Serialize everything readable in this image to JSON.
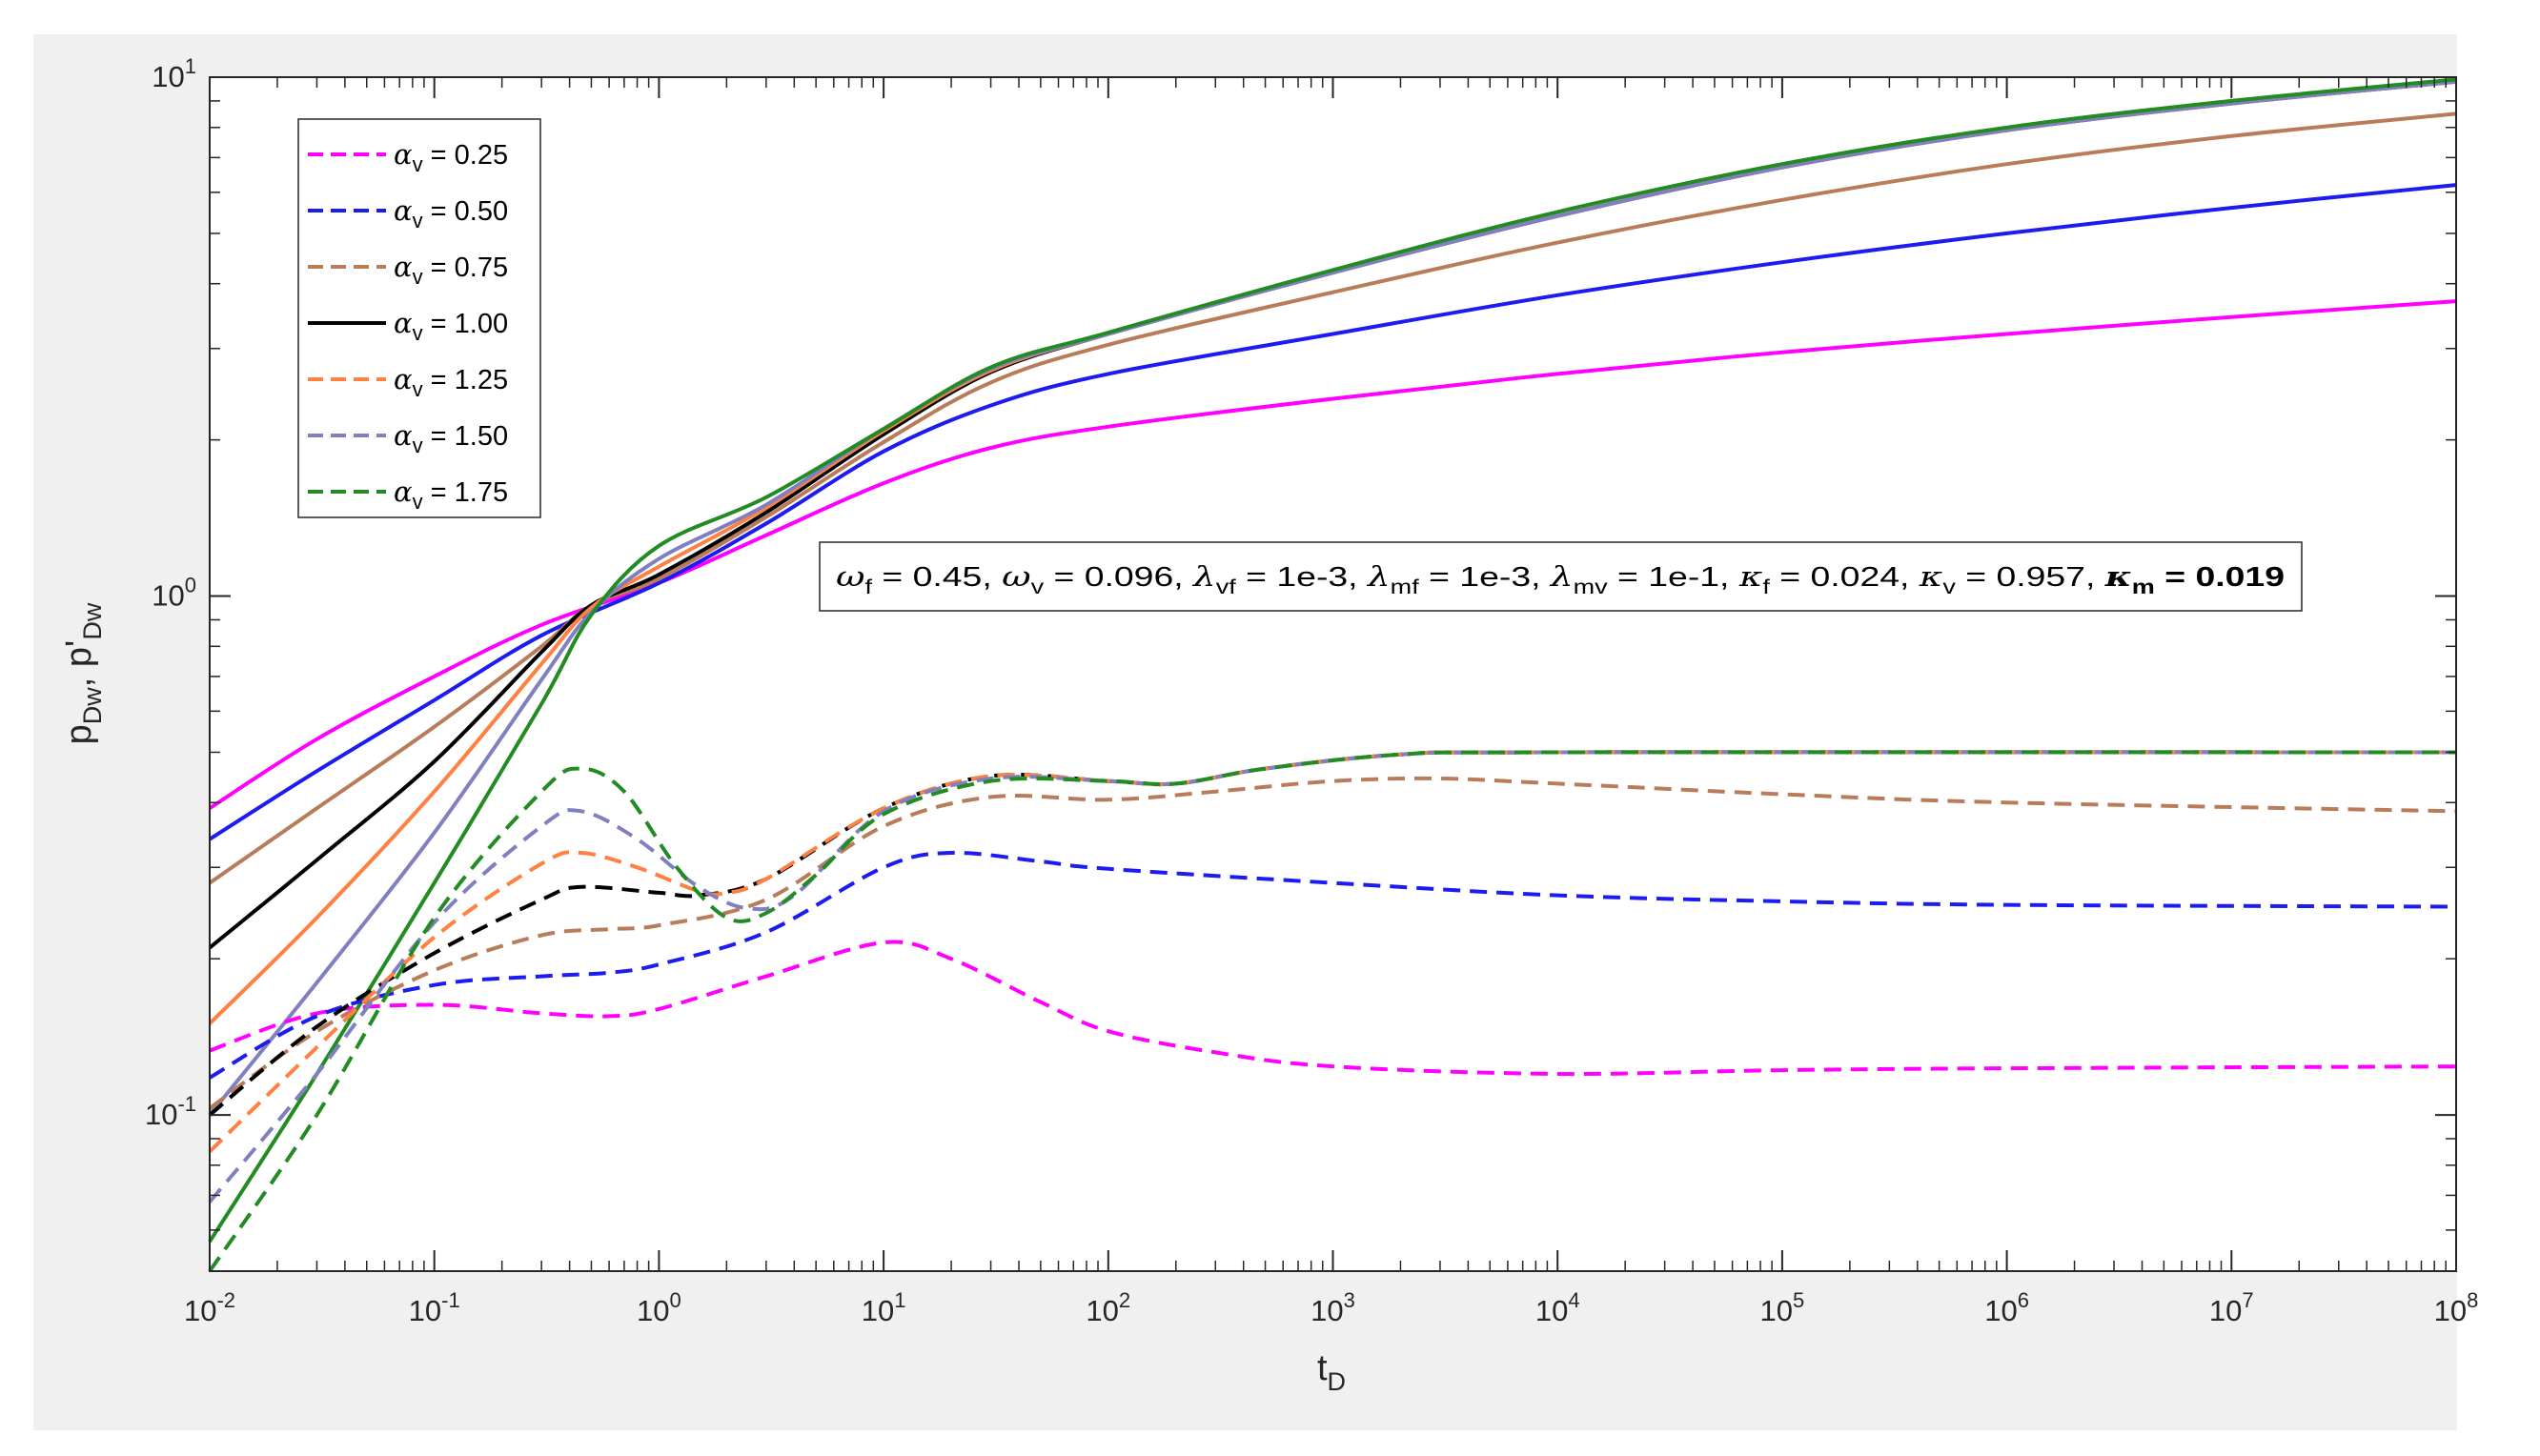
{
  "chart_data": {
    "type": "line",
    "xscale": "log",
    "yscale": "log",
    "xlim": [
      0.01,
      100000000
    ],
    "ylim": [
      0.05,
      10
    ],
    "xticks": [
      {
        "base": "10",
        "exp": "-2"
      },
      {
        "base": "10",
        "exp": "-1"
      },
      {
        "base": "10",
        "exp": "0"
      },
      {
        "base": "10",
        "exp": "1"
      },
      {
        "base": "10",
        "exp": "2"
      },
      {
        "base": "10",
        "exp": "3"
      },
      {
        "base": "10",
        "exp": "4"
      },
      {
        "base": "10",
        "exp": "5"
      },
      {
        "base": "10",
        "exp": "6"
      },
      {
        "base": "10",
        "exp": "7"
      },
      {
        "base": "10",
        "exp": "8"
      }
    ],
    "yticks": [
      {
        "base": "10",
        "exp": "-1"
      },
      {
        "base": "10",
        "exp": "0"
      },
      {
        "base": "10",
        "exp": "1"
      }
    ],
    "xlabel": {
      "main": "t",
      "sub": "D"
    },
    "ylabel": {
      "p1": "p",
      "s1": "Dw",
      "sep": ", p'",
      "s2": "Dw"
    },
    "legend_position": "top-left",
    "grid": false,
    "annotation": "ωf = 0.45, ωv = 0.096, λvf = 1e-3, λmf = 1e-3, λmv = 1e-1, κf = 0.024, κv = 0.957, κm = 0.019",
    "series": [
      {
        "name": "αv = 0.25",
        "symbol": "α",
        "sub": "v",
        "value": "0.25",
        "color": "#ff00ff",
        "pressure": [
          [
            0.01,
            0.39
          ],
          [
            0.03,
            0.53
          ],
          [
            0.1,
            0.7
          ],
          [
            0.3,
            0.88
          ],
          [
            1,
            1.06
          ],
          [
            3,
            1.31
          ],
          [
            10,
            1.65
          ],
          [
            30,
            1.93
          ],
          [
            100,
            2.12
          ],
          [
            1000,
            2.4
          ],
          [
            10000,
            2.68
          ],
          [
            100000,
            2.95
          ],
          [
            1000000,
            3.2
          ],
          [
            10000000,
            3.45
          ],
          [
            100000000,
            3.7
          ]
        ],
        "derivative": [
          [
            0.01,
            0.133
          ],
          [
            0.03,
            0.157
          ],
          [
            0.1,
            0.163
          ],
          [
            0.3,
            0.157
          ],
          [
            0.6,
            0.155
          ],
          [
            1,
            0.16
          ],
          [
            3,
            0.185
          ],
          [
            10,
            0.215
          ],
          [
            20,
            0.2
          ],
          [
            50,
            0.165
          ],
          [
            100,
            0.145
          ],
          [
            300,
            0.132
          ],
          [
            1000,
            0.124
          ],
          [
            10000,
            0.12
          ],
          [
            100000,
            0.122
          ],
          [
            1000000,
            0.123
          ],
          [
            100000000,
            0.124
          ]
        ]
      },
      {
        "name": "αv = 0.50",
        "symbol": "α",
        "sub": "v",
        "value": "0.50",
        "color": "#1c1cf0",
        "pressure": [
          [
            0.01,
            0.34
          ],
          [
            0.03,
            0.46
          ],
          [
            0.1,
            0.63
          ],
          [
            0.3,
            0.84
          ],
          [
            1,
            1.06
          ],
          [
            3,
            1.38
          ],
          [
            10,
            1.9
          ],
          [
            30,
            2.33
          ],
          [
            100,
            2.68
          ],
          [
            1000,
            3.2
          ],
          [
            10000,
            3.8
          ],
          [
            100000,
            4.4
          ],
          [
            1000000,
            5.0
          ],
          [
            10000000,
            5.6
          ],
          [
            100000000,
            6.2
          ]
        ],
        "derivative": [
          [
            0.01,
            0.118
          ],
          [
            0.03,
            0.155
          ],
          [
            0.1,
            0.178
          ],
          [
            0.3,
            0.185
          ],
          [
            0.6,
            0.188
          ],
          [
            1,
            0.195
          ],
          [
            3,
            0.225
          ],
          [
            10,
            0.3
          ],
          [
            20,
            0.32
          ],
          [
            50,
            0.308
          ],
          [
            100,
            0.298
          ],
          [
            1000,
            0.28
          ],
          [
            10000,
            0.265
          ],
          [
            100000,
            0.258
          ],
          [
            1000000,
            0.254
          ],
          [
            100000000,
            0.252
          ]
        ]
      },
      {
        "name": "αv = 0.75",
        "symbol": "α",
        "sub": "v",
        "value": "0.75",
        "color": "#b87c5a",
        "pressure": [
          [
            0.01,
            0.28
          ],
          [
            0.03,
            0.39
          ],
          [
            0.1,
            0.56
          ],
          [
            0.3,
            0.8
          ],
          [
            0.5,
            0.96
          ],
          [
            1,
            1.08
          ],
          [
            3,
            1.42
          ],
          [
            10,
            1.98
          ],
          [
            30,
            2.58
          ],
          [
            100,
            3.05
          ],
          [
            1000,
            3.85
          ],
          [
            10000,
            4.8
          ],
          [
            100000,
            5.8
          ],
          [
            1000000,
            6.8
          ],
          [
            10000000,
            7.7
          ],
          [
            100000000,
            8.5
          ]
        ],
        "derivative": [
          [
            0.01,
            0.103
          ],
          [
            0.03,
            0.145
          ],
          [
            0.1,
            0.19
          ],
          [
            0.3,
            0.222
          ],
          [
            0.6,
            0.228
          ],
          [
            1,
            0.232
          ],
          [
            3,
            0.26
          ],
          [
            10,
            0.36
          ],
          [
            30,
            0.41
          ],
          [
            100,
            0.405
          ],
          [
            300,
            0.42
          ],
          [
            1000,
            0.44
          ],
          [
            3000,
            0.445
          ],
          [
            10000,
            0.435
          ],
          [
            100000,
            0.415
          ],
          [
            1000000,
            0.4
          ],
          [
            100000000,
            0.385
          ]
        ]
      },
      {
        "name": "αv = 1.00",
        "symbol": "α",
        "sub": "v",
        "value": "1.00",
        "color": "#000000",
        "pressure": [
          [
            0.01,
            0.21
          ],
          [
            0.03,
            0.31
          ],
          [
            0.1,
            0.48
          ],
          [
            0.3,
            0.78
          ],
          [
            0.5,
            0.96
          ],
          [
            1,
            1.1
          ],
          [
            3,
            1.45
          ],
          [
            10,
            2.05
          ],
          [
            30,
            2.7
          ],
          [
            100,
            3.2
          ],
          [
            1000,
            4.2
          ],
          [
            10000,
            5.4
          ],
          [
            100000,
            6.7
          ],
          [
            1000000,
            7.9
          ],
          [
            10000000,
            8.9
          ],
          [
            100000000,
            9.8
          ]
        ],
        "derivative": [
          [
            0.01,
            0.1
          ],
          [
            0.03,
            0.148
          ],
          [
            0.1,
            0.205
          ],
          [
            0.3,
            0.26
          ],
          [
            0.45,
            0.275
          ],
          [
            1,
            0.268
          ],
          [
            1.5,
            0.265
          ],
          [
            3,
            0.285
          ],
          [
            10,
            0.39
          ],
          [
            30,
            0.45
          ],
          [
            100,
            0.44
          ],
          [
            200,
            0.435
          ],
          [
            500,
            0.465
          ],
          [
            2000,
            0.495
          ],
          [
            10000,
            0.5
          ],
          [
            100000000,
            0.5
          ]
        ]
      },
      {
        "name": "αv = 1.25",
        "symbol": "α",
        "sub": "v",
        "value": "1.25",
        "color": "#ff8040",
        "pressure": [
          [
            0.01,
            0.15
          ],
          [
            0.03,
            0.24
          ],
          [
            0.1,
            0.42
          ],
          [
            0.3,
            0.74
          ],
          [
            0.5,
            0.95
          ],
          [
            1,
            1.14
          ],
          [
            3,
            1.48
          ],
          [
            10,
            2.08
          ],
          [
            30,
            2.72
          ],
          [
            100,
            3.2
          ],
          [
            1000,
            4.2
          ],
          [
            10000,
            5.4
          ],
          [
            100000,
            6.7
          ],
          [
            1000000,
            7.9
          ],
          [
            10000000,
            8.9
          ],
          [
            100000000,
            9.8
          ]
        ],
        "derivative": [
          [
            0.01,
            0.085
          ],
          [
            0.03,
            0.135
          ],
          [
            0.1,
            0.22
          ],
          [
            0.3,
            0.305
          ],
          [
            0.45,
            0.32
          ],
          [
            0.8,
            0.3
          ],
          [
            1.5,
            0.27
          ],
          [
            2,
            0.268
          ],
          [
            3,
            0.285
          ],
          [
            10,
            0.39
          ],
          [
            30,
            0.45
          ],
          [
            100,
            0.44
          ],
          [
            200,
            0.435
          ],
          [
            500,
            0.465
          ],
          [
            2000,
            0.495
          ],
          [
            10000,
            0.5
          ],
          [
            100000000,
            0.5
          ]
        ]
      },
      {
        "name": "αv = 1.50",
        "symbol": "α",
        "sub": "v",
        "value": "1.50",
        "color": "#8080c0",
        "pressure": [
          [
            0.01,
            0.1
          ],
          [
            0.03,
            0.18
          ],
          [
            0.1,
            0.35
          ],
          [
            0.3,
            0.69
          ],
          [
            0.5,
            0.93
          ],
          [
            1,
            1.18
          ],
          [
            3,
            1.5
          ],
          [
            10,
            2.1
          ],
          [
            30,
            2.74
          ],
          [
            100,
            3.2
          ],
          [
            1000,
            4.2
          ],
          [
            10000,
            5.4
          ],
          [
            100000,
            6.7
          ],
          [
            1000000,
            7.9
          ],
          [
            10000000,
            8.9
          ],
          [
            100000000,
            9.8
          ]
        ],
        "derivative": [
          [
            0.01,
            0.068
          ],
          [
            0.03,
            0.12
          ],
          [
            0.1,
            0.235
          ],
          [
            0.3,
            0.36
          ],
          [
            0.45,
            0.385
          ],
          [
            0.8,
            0.34
          ],
          [
            1.5,
            0.275
          ],
          [
            2.5,
            0.25
          ],
          [
            4,
            0.265
          ],
          [
            10,
            0.385
          ],
          [
            30,
            0.445
          ],
          [
            100,
            0.44
          ],
          [
            200,
            0.435
          ],
          [
            500,
            0.465
          ],
          [
            2000,
            0.495
          ],
          [
            10000,
            0.5
          ],
          [
            100000000,
            0.5
          ]
        ]
      },
      {
        "name": "αv = 1.75",
        "symbol": "α",
        "sub": "v",
        "value": "1.75",
        "color": "#228b22",
        "pressure": [
          [
            0.01,
            0.057
          ],
          [
            0.03,
            0.12
          ],
          [
            0.1,
            0.28
          ],
          [
            0.3,
            0.62
          ],
          [
            0.5,
            0.92
          ],
          [
            1,
            1.25
          ],
          [
            3,
            1.55
          ],
          [
            10,
            2.1
          ],
          [
            30,
            2.76
          ],
          [
            100,
            3.22
          ],
          [
            1000,
            4.25
          ],
          [
            10000,
            5.5
          ],
          [
            100000,
            6.8
          ],
          [
            1000000,
            8.0
          ],
          [
            10000000,
            9.0
          ],
          [
            100000000,
            9.9
          ]
        ],
        "derivative": [
          [
            0.01,
            0.05
          ],
          [
            0.03,
            0.1
          ],
          [
            0.1,
            0.24
          ],
          [
            0.3,
            0.42
          ],
          [
            0.45,
            0.465
          ],
          [
            0.7,
            0.42
          ],
          [
            1.2,
            0.3
          ],
          [
            2,
            0.24
          ],
          [
            3,
            0.245
          ],
          [
            5,
            0.29
          ],
          [
            10,
            0.38
          ],
          [
            30,
            0.44
          ],
          [
            100,
            0.44
          ],
          [
            200,
            0.435
          ],
          [
            500,
            0.465
          ],
          [
            2000,
            0.495
          ],
          [
            10000,
            0.5
          ],
          [
            100000000,
            0.5
          ]
        ]
      }
    ]
  }
}
